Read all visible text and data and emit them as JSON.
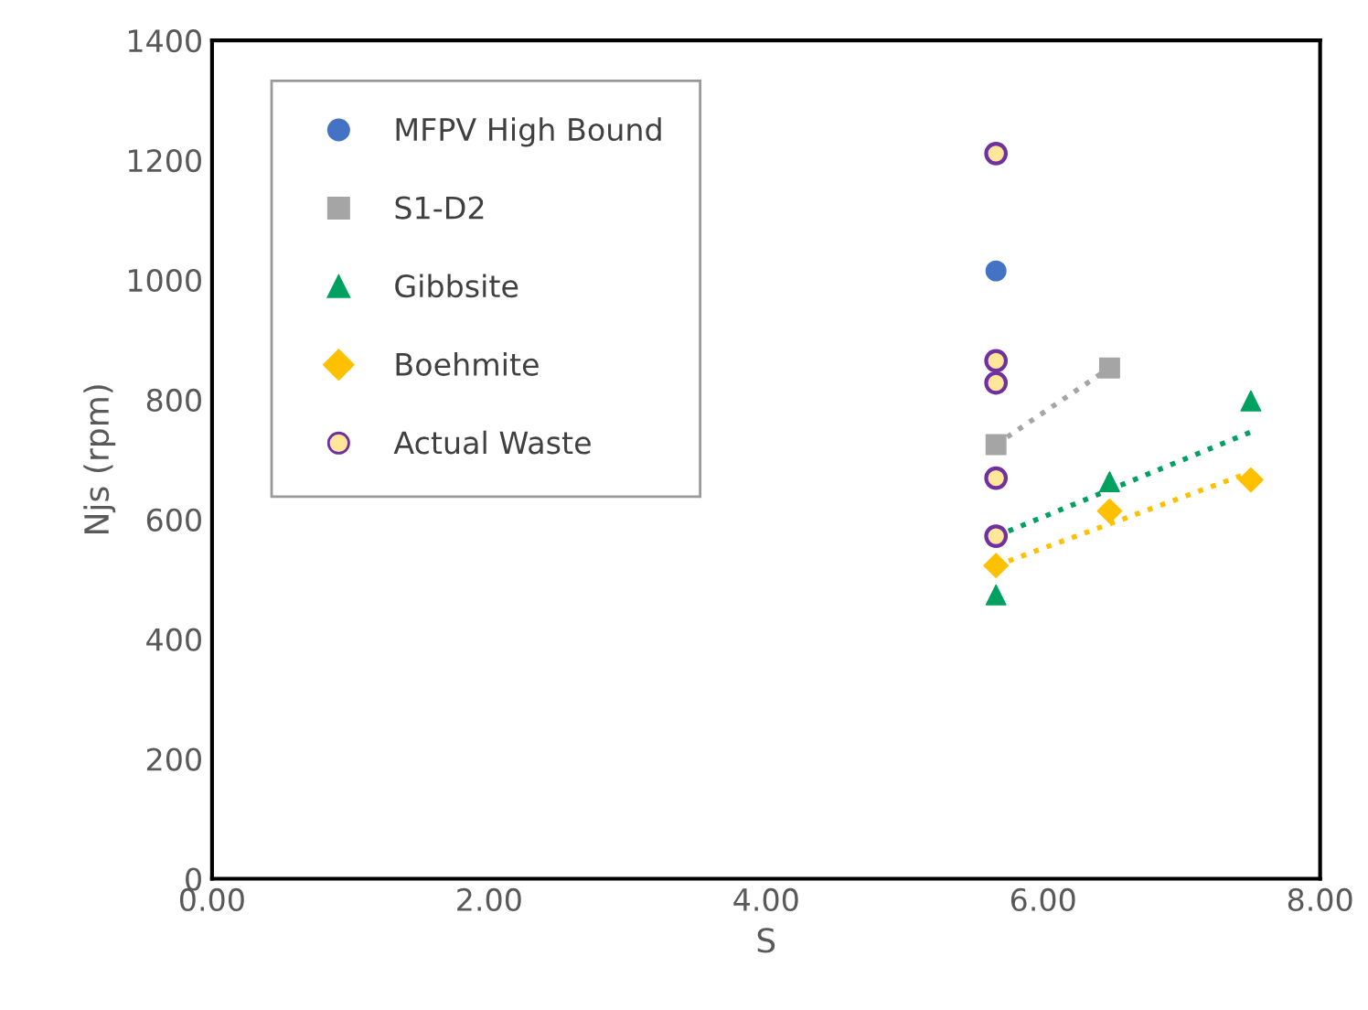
{
  "chart_data": {
    "type": "scatter",
    "xlabel": "S",
    "ylabel": "Njs (rpm)",
    "xlim": [
      0,
      8
    ],
    "xticks": [
      {
        "value": 0,
        "label": "0.00"
      },
      {
        "value": 2,
        "label": "2.00"
      },
      {
        "value": 4,
        "label": "4.00"
      },
      {
        "value": 6,
        "label": "6.00"
      },
      {
        "value": 8,
        "label": "8.00"
      }
    ],
    "ylim": [
      0,
      1400
    ],
    "yticks": [
      0,
      200,
      400,
      600,
      800,
      1000,
      1200,
      1400
    ],
    "grid": false,
    "legend": "top left",
    "series": [
      {
        "name": "MFPV High Bound",
        "color": "#4472c4",
        "marker": "circle",
        "x": [
          5.66
        ],
        "values": [
          1015
        ]
      },
      {
        "name": "S1-D2",
        "color": "#a5a5a5",
        "marker": "square",
        "x": [
          5.66,
          6.48
        ],
        "values": [
          725,
          853
        ]
      },
      {
        "name": "Gibbsite",
        "color": "#00a060",
        "marker": "triangle",
        "x": [
          5.66,
          6.48,
          7.5
        ],
        "values": [
          474,
          663,
          798
        ]
      },
      {
        "name": "Boehmite",
        "color": "#ffc000",
        "marker": "diamond",
        "x": [
          5.66,
          6.48,
          7.5
        ],
        "values": [
          523,
          614,
          666
        ]
      },
      {
        "name": "Actual Waste",
        "color": "#7030a0",
        "marker": "circle",
        "x": [
          5.66,
          5.66,
          5.66,
          5.66,
          5.66
        ],
        "values": [
          1211,
          865,
          828,
          669,
          572
        ]
      },
      {
        "type": "line",
        "color": "#a5a5a5",
        "line_style": "dotted",
        "x": [
          5.66,
          6.48
        ],
        "values": [
          725,
          853
        ]
      },
      {
        "type": "line",
        "color": "#00a060",
        "line_style": "dotted",
        "x": [
          5.66,
          7.5
        ],
        "values": [
          572,
          746
        ]
      },
      {
        "type": "line",
        "color": "#ffc000",
        "line_style": "dotted",
        "x": [
          5.66,
          7.5
        ],
        "values": [
          523,
          679
        ]
      }
    ]
  }
}
